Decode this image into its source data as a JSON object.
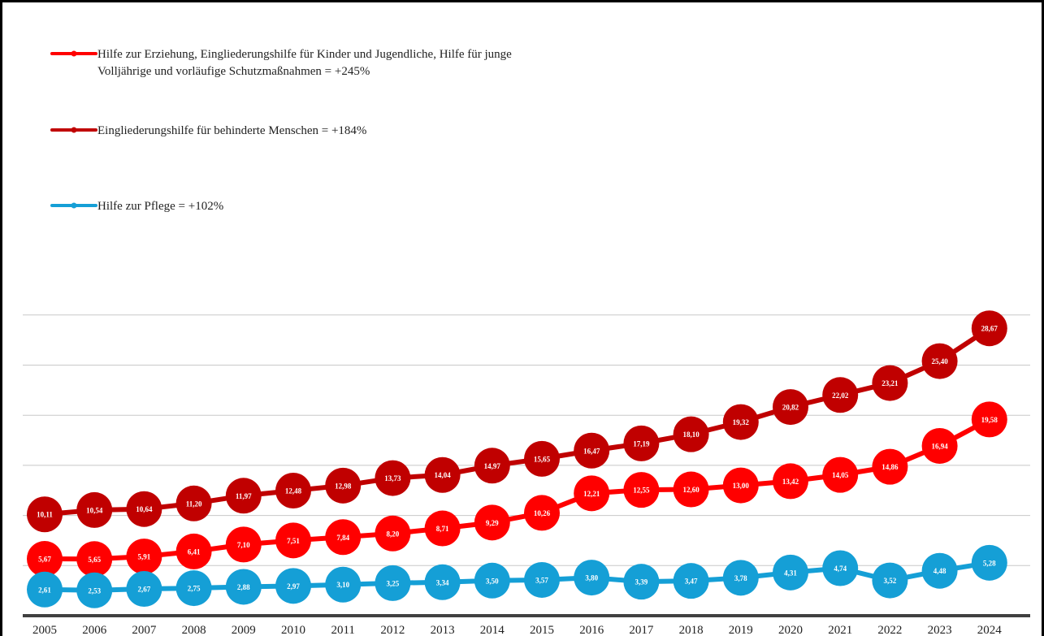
{
  "chart_data": {
    "type": "line",
    "categories": [
      "2005",
      "2006",
      "2007",
      "2008",
      "2009",
      "2010",
      "2011",
      "2012",
      "2013",
      "2014",
      "2015",
      "2016",
      "2017",
      "2018",
      "2019",
      "2020",
      "2021",
      "2022",
      "2023",
      "2024"
    ],
    "ylim": [
      0,
      30
    ],
    "grid": true,
    "legend_position": "top-left",
    "series": [
      {
        "name": "Hilfe zur Erziehung, Eingliederungshilfe für Kinder und Jugendliche, Hilfe für junge Volljährige und vorläufige Schutzmaßnahmen = +245%",
        "legend_lines": [
          "Hilfe zur Erziehung, Eingliederungshilfe für Kinder und Jugendliche, Hilfe für junge",
          "Volljährige und vorläufige Schutzmaßnahmen = +245%"
        ],
        "color": "#ff0000",
        "values": [
          5.67,
          5.65,
          5.91,
          6.41,
          7.1,
          7.51,
          7.84,
          8.2,
          8.71,
          9.29,
          10.26,
          12.21,
          12.55,
          12.6,
          13.0,
          13.42,
          14.05,
          14.86,
          16.94,
          19.58
        ],
        "labels": [
          "5,67",
          "5,65",
          "5,91",
          "6,41",
          "7,10",
          "7,51",
          "7,84",
          "8,20",
          "8,71",
          "9,29",
          "10,26",
          "12,21",
          "12,55",
          "12,60",
          "13,00",
          "13,42",
          "14,05",
          "14,86",
          "16,94",
          "19,58"
        ]
      },
      {
        "name": "Eingliederungshilfe für behinderte Menschen = +184%",
        "legend_lines": [
          "Eingliederungshilfe für behinderte Menschen = +184%"
        ],
        "color": "#c00000",
        "values": [
          10.11,
          10.54,
          10.64,
          11.2,
          11.97,
          12.48,
          12.98,
          13.73,
          14.04,
          14.97,
          15.65,
          16.47,
          17.19,
          18.1,
          19.32,
          20.82,
          22.02,
          23.21,
          25.4,
          28.67
        ],
        "labels": [
          "10,11",
          "10,54",
          "10,64",
          "11,20",
          "11,97",
          "12,48",
          "12,98",
          "13,73",
          "14,04",
          "14,97",
          "15,65",
          "16,47",
          "17,19",
          "18,10",
          "19,32",
          "20,82",
          "22,02",
          "23,21",
          "25,40",
          "28,67"
        ]
      },
      {
        "name": "Hilfe zur Pflege = +102%",
        "legend_lines": [
          "Hilfe zur Pflege = +102%"
        ],
        "color": "#159fd6",
        "values": [
          2.61,
          2.53,
          2.67,
          2.75,
          2.88,
          2.97,
          3.1,
          3.25,
          3.34,
          3.5,
          3.57,
          3.8,
          3.39,
          3.47,
          3.78,
          4.31,
          4.74,
          3.52,
          4.48,
          5.28
        ],
        "labels": [
          "2,61",
          "2,53",
          "2,67",
          "2,75",
          "2,88",
          "2,97",
          "3,10",
          "3,25",
          "3,34",
          "3,50",
          "3,57",
          "3,80",
          "3,39",
          "3,47",
          "3,78",
          "4,31",
          "4,74",
          "3,52",
          "4,48",
          "5,28"
        ]
      }
    ]
  }
}
